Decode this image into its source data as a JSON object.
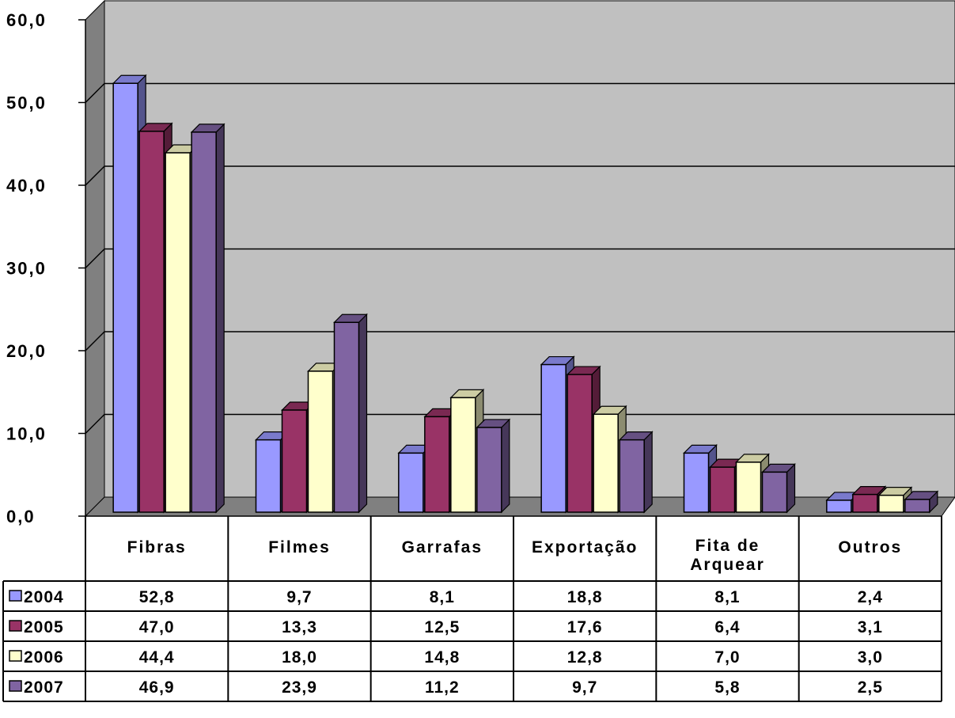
{
  "chart_data": {
    "type": "bar",
    "title": "",
    "xlabel": "",
    "ylabel": "",
    "ylim": [
      0,
      60
    ],
    "yticks": [
      "0,0",
      "10,0",
      "20,0",
      "30,0",
      "40,0",
      "50,0",
      "60,0"
    ],
    "grid": true,
    "three_d": true,
    "legend_placement": "data-table-left",
    "categories": [
      "Fibras",
      "Filmes",
      "Garrafas",
      "Exportação",
      "Fita de Arquear",
      "Outros"
    ],
    "category_label_lines": [
      [
        "Fibras"
      ],
      [
        "Filmes"
      ],
      [
        "Garrafas"
      ],
      [
        "Exportação"
      ],
      [
        "Fita de",
        "Arquear"
      ],
      [
        "Outros"
      ]
    ],
    "series": [
      {
        "name": "2004",
        "color": "#9999ff",
        "values": [
          52.8,
          9.7,
          8.1,
          18.8,
          8.1,
          2.4
        ],
        "labels": [
          "52,8",
          "9,7",
          "8,1",
          "18,8",
          "8,1",
          "2,4"
        ]
      },
      {
        "name": "2005",
        "color": "#993366",
        "values": [
          47.0,
          13.3,
          12.5,
          17.6,
          6.4,
          3.1
        ],
        "labels": [
          "47,0",
          "13,3",
          "12,5",
          "17,6",
          "6,4",
          "3,1"
        ]
      },
      {
        "name": "2006",
        "color": "#ffffcc",
        "values": [
          44.4,
          18.0,
          14.8,
          12.8,
          7.0,
          3.0
        ],
        "labels": [
          "44,4",
          "18,0",
          "14,8",
          "12,8",
          "7,0",
          "3,0"
        ]
      },
      {
        "name": "2007",
        "color": "#8064a2",
        "values": [
          46.9,
          23.9,
          11.2,
          9.7,
          5.8,
          2.5
        ],
        "labels": [
          "46,9",
          "23,9",
          "11,2",
          "9,7",
          "5,8",
          "2,5"
        ]
      }
    ],
    "colors": {
      "wall": "#c0c0c0",
      "side_wall": "#808080",
      "floor": "#808080",
      "gridline": "#000000"
    }
  }
}
